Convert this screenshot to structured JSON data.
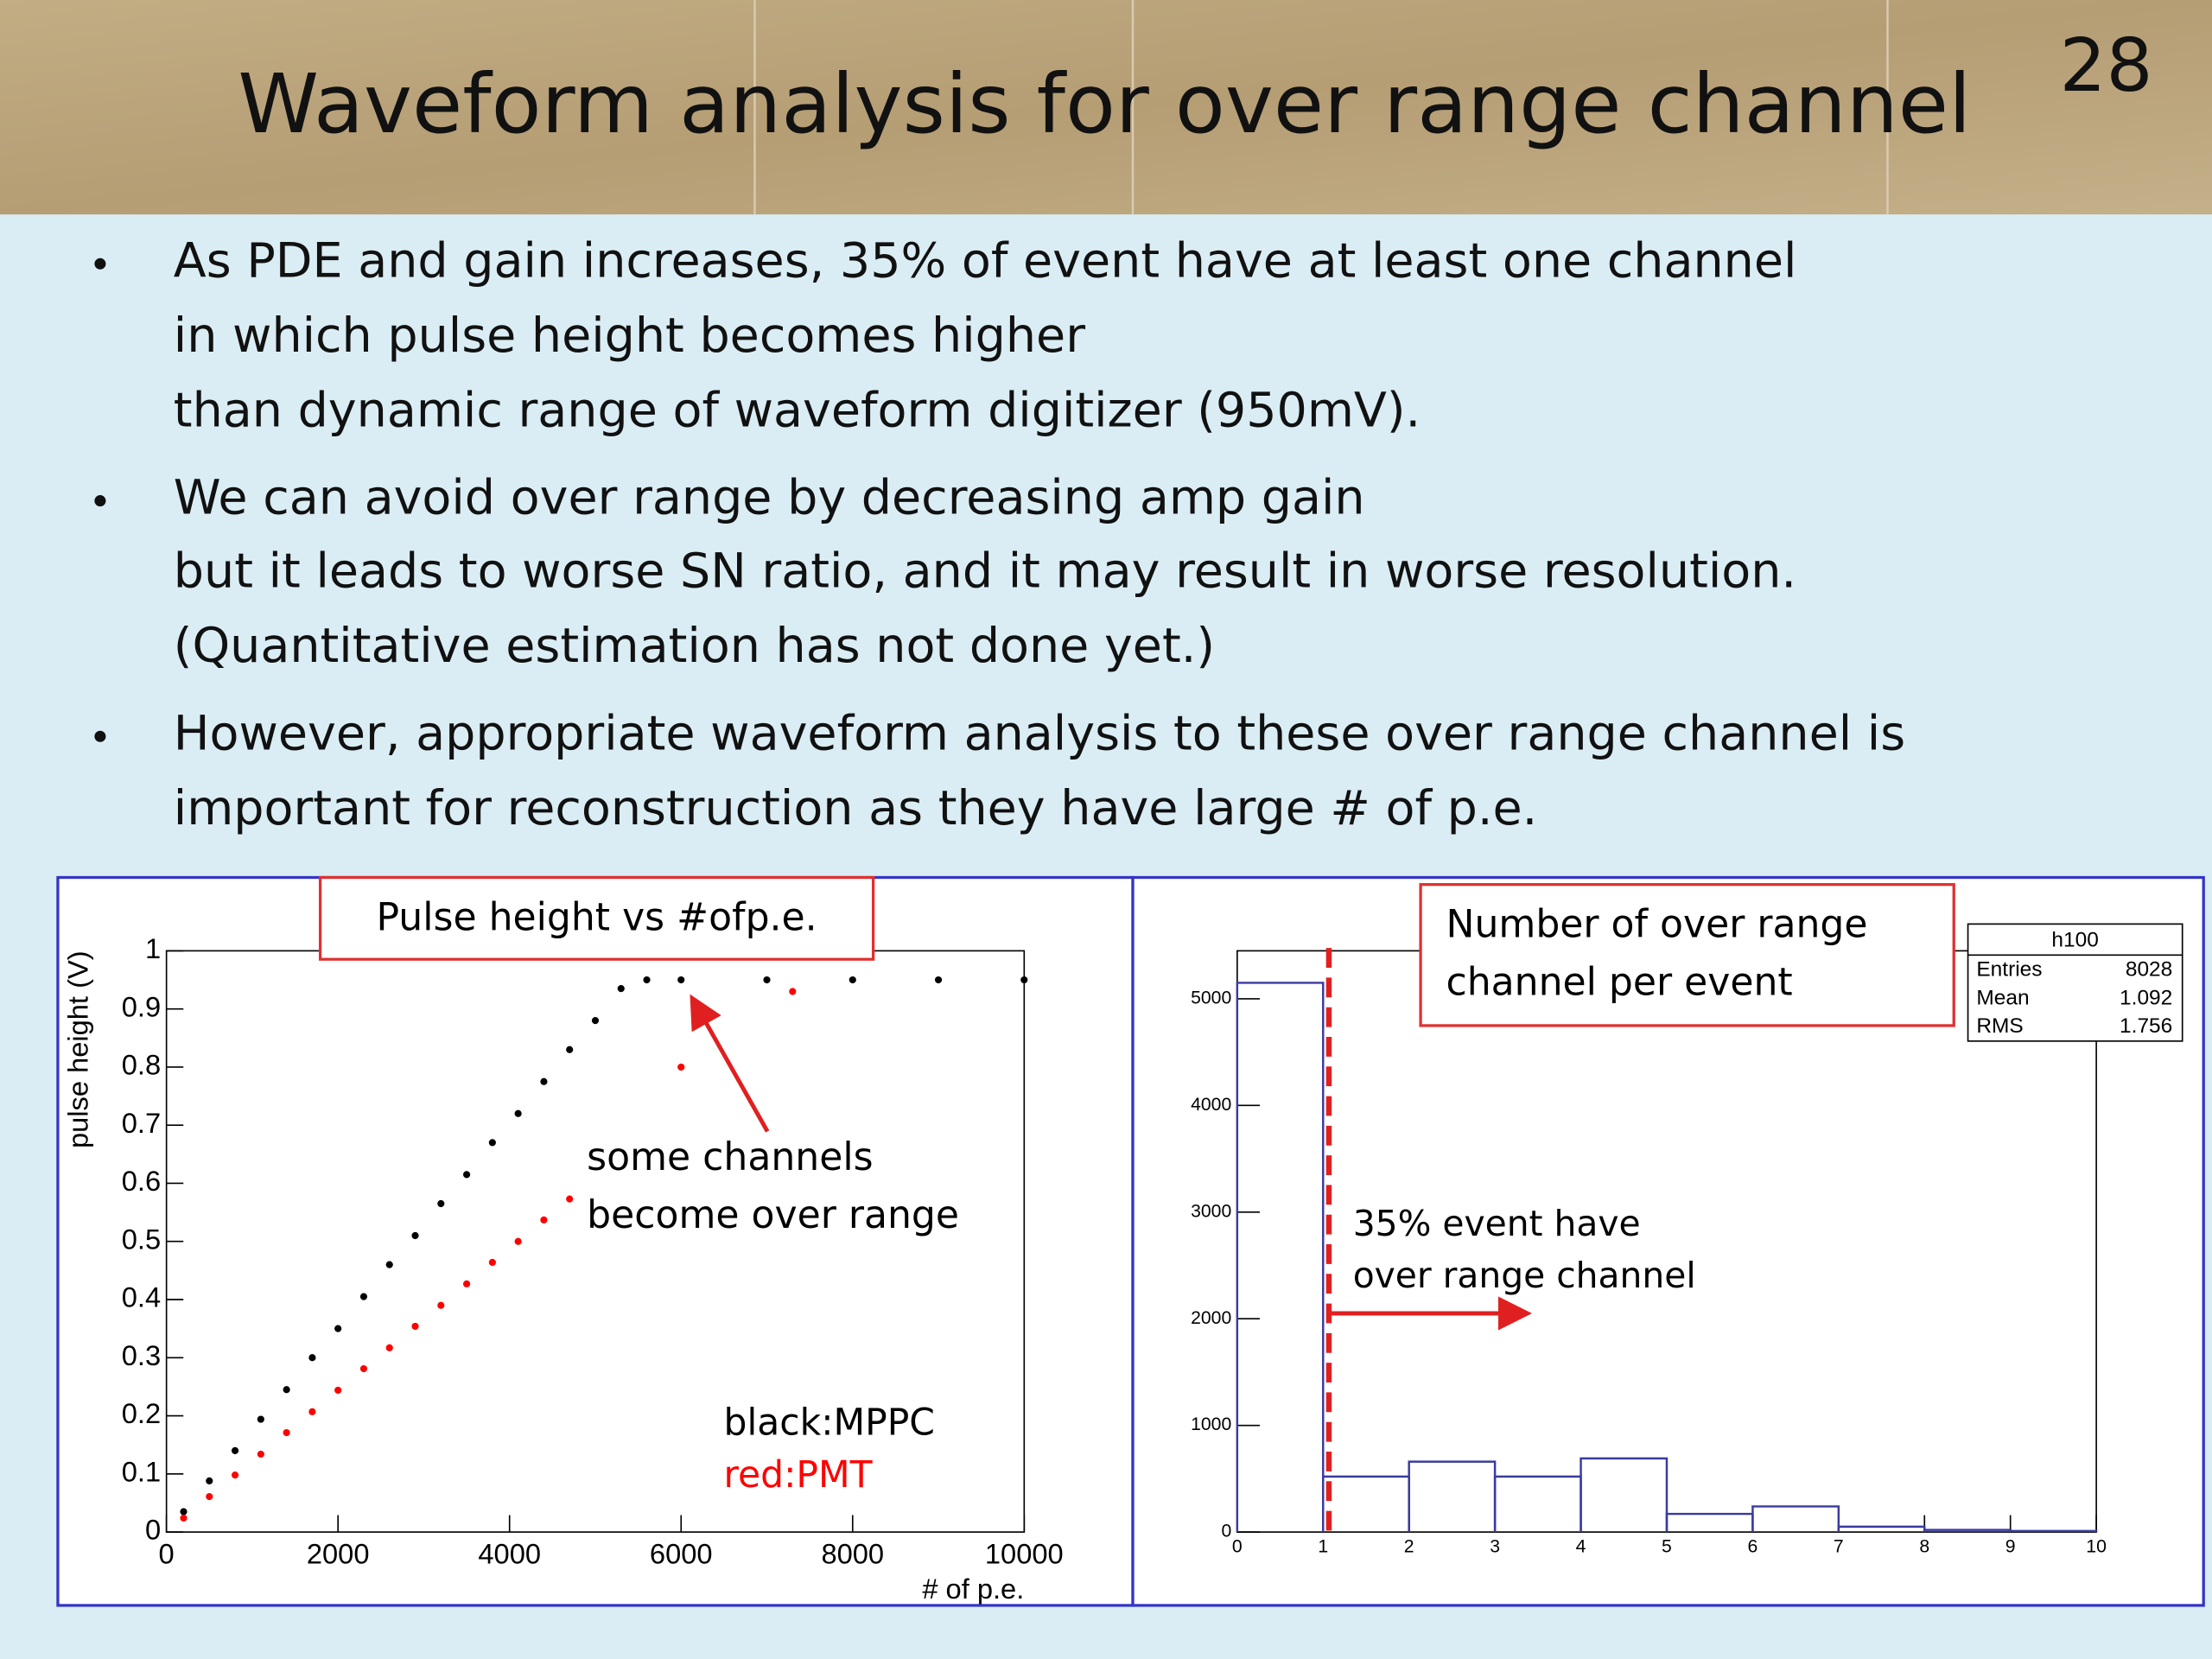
{
  "slide": {
    "title": "Waveform analysis for over range channel",
    "page_number": "28",
    "bullets": [
      [
        "As PDE and gain increases, 35% of event have at least one channel",
        "in which pulse height becomes higher",
        "than dynamic range of waveform digitizer (950mV)."
      ],
      [
        "We can avoid over range by decreasing amp gain",
        "but it leads to worse SN ratio, and it may result in worse resolution.",
        "(Quantitative estimation has not done yet.)"
      ],
      [
        "However, appropriate waveform analysis to these over range channel is",
        "important for reconstruction as they have large # of p.e."
      ]
    ]
  },
  "chart_data": [
    {
      "type": "scatter",
      "title": "Pulse height vs #ofp.e.",
      "xlabel": "# of p.e.",
      "ylabel": "pulse height (V)",
      "annotation_lines": [
        "some channels",
        "become over range"
      ],
      "xlim": [
        0,
        10000
      ],
      "ylim": [
        0,
        1
      ],
      "xticks": [
        0,
        2000,
        4000,
        6000,
        8000,
        10000
      ],
      "yticks": [
        0,
        0.1,
        0.2,
        0.3,
        0.4,
        0.5,
        0.6,
        0.7,
        0.8,
        0.9,
        1
      ],
      "series": [
        {
          "name": "black:MPPC",
          "color": "#000000",
          "x": [
            200,
            500,
            800,
            1100,
            1400,
            1700,
            2000,
            2300,
            2600,
            2900,
            3200,
            3500,
            3800,
            4100,
            4400,
            4700,
            5000,
            5300,
            5600,
            6000,
            7000,
            8000,
            9000,
            10000
          ],
          "values": [
            0.035,
            0.088,
            0.14,
            0.194,
            0.245,
            0.3,
            0.35,
            0.405,
            0.46,
            0.51,
            0.565,
            0.615,
            0.67,
            0.72,
            0.775,
            0.83,
            0.88,
            0.935,
            0.95,
            0.95,
            0.95,
            0.95,
            0.95,
            0.95
          ]
        },
        {
          "name": "red:PMT",
          "color": "#ff0000",
          "x": [
            200,
            500,
            800,
            1100,
            1400,
            1700,
            2000,
            2300,
            2600,
            2900,
            3200,
            3500,
            3800,
            4100,
            4400,
            4700,
            6000,
            7300
          ],
          "values": [
            0.024,
            0.061,
            0.098,
            0.134,
            0.171,
            0.207,
            0.244,
            0.281,
            0.317,
            0.354,
            0.39,
            0.427,
            0.464,
            0.5,
            0.537,
            0.573,
            0.8,
            0.93
          ]
        }
      ]
    },
    {
      "type": "histogram",
      "title_lines": [
        "Number of over range",
        "channel per event"
      ],
      "annotation_lines": [
        "35% event have",
        "over range channel"
      ],
      "bins": [
        0,
        1,
        2,
        3,
        4,
        5,
        6,
        7,
        8,
        9,
        10
      ],
      "values": [
        5150,
        520,
        660,
        520,
        690,
        170,
        240,
        50,
        20,
        10
      ],
      "color": "#3a3aa0",
      "xlim": [
        0,
        10
      ],
      "ylim": [
        0,
        5450
      ],
      "xticks": [
        0,
        1,
        2,
        3,
        4,
        5,
        6,
        7,
        8,
        9,
        10
      ],
      "yticks": [
        0,
        1000,
        2000,
        3000,
        4000,
        5000
      ],
      "stats": {
        "name": "h100",
        "rows": [
          [
            "Entries",
            8028
          ],
          [
            "Mean",
            1.092
          ],
          [
            "RMS",
            1.756
          ]
        ]
      }
    }
  ]
}
